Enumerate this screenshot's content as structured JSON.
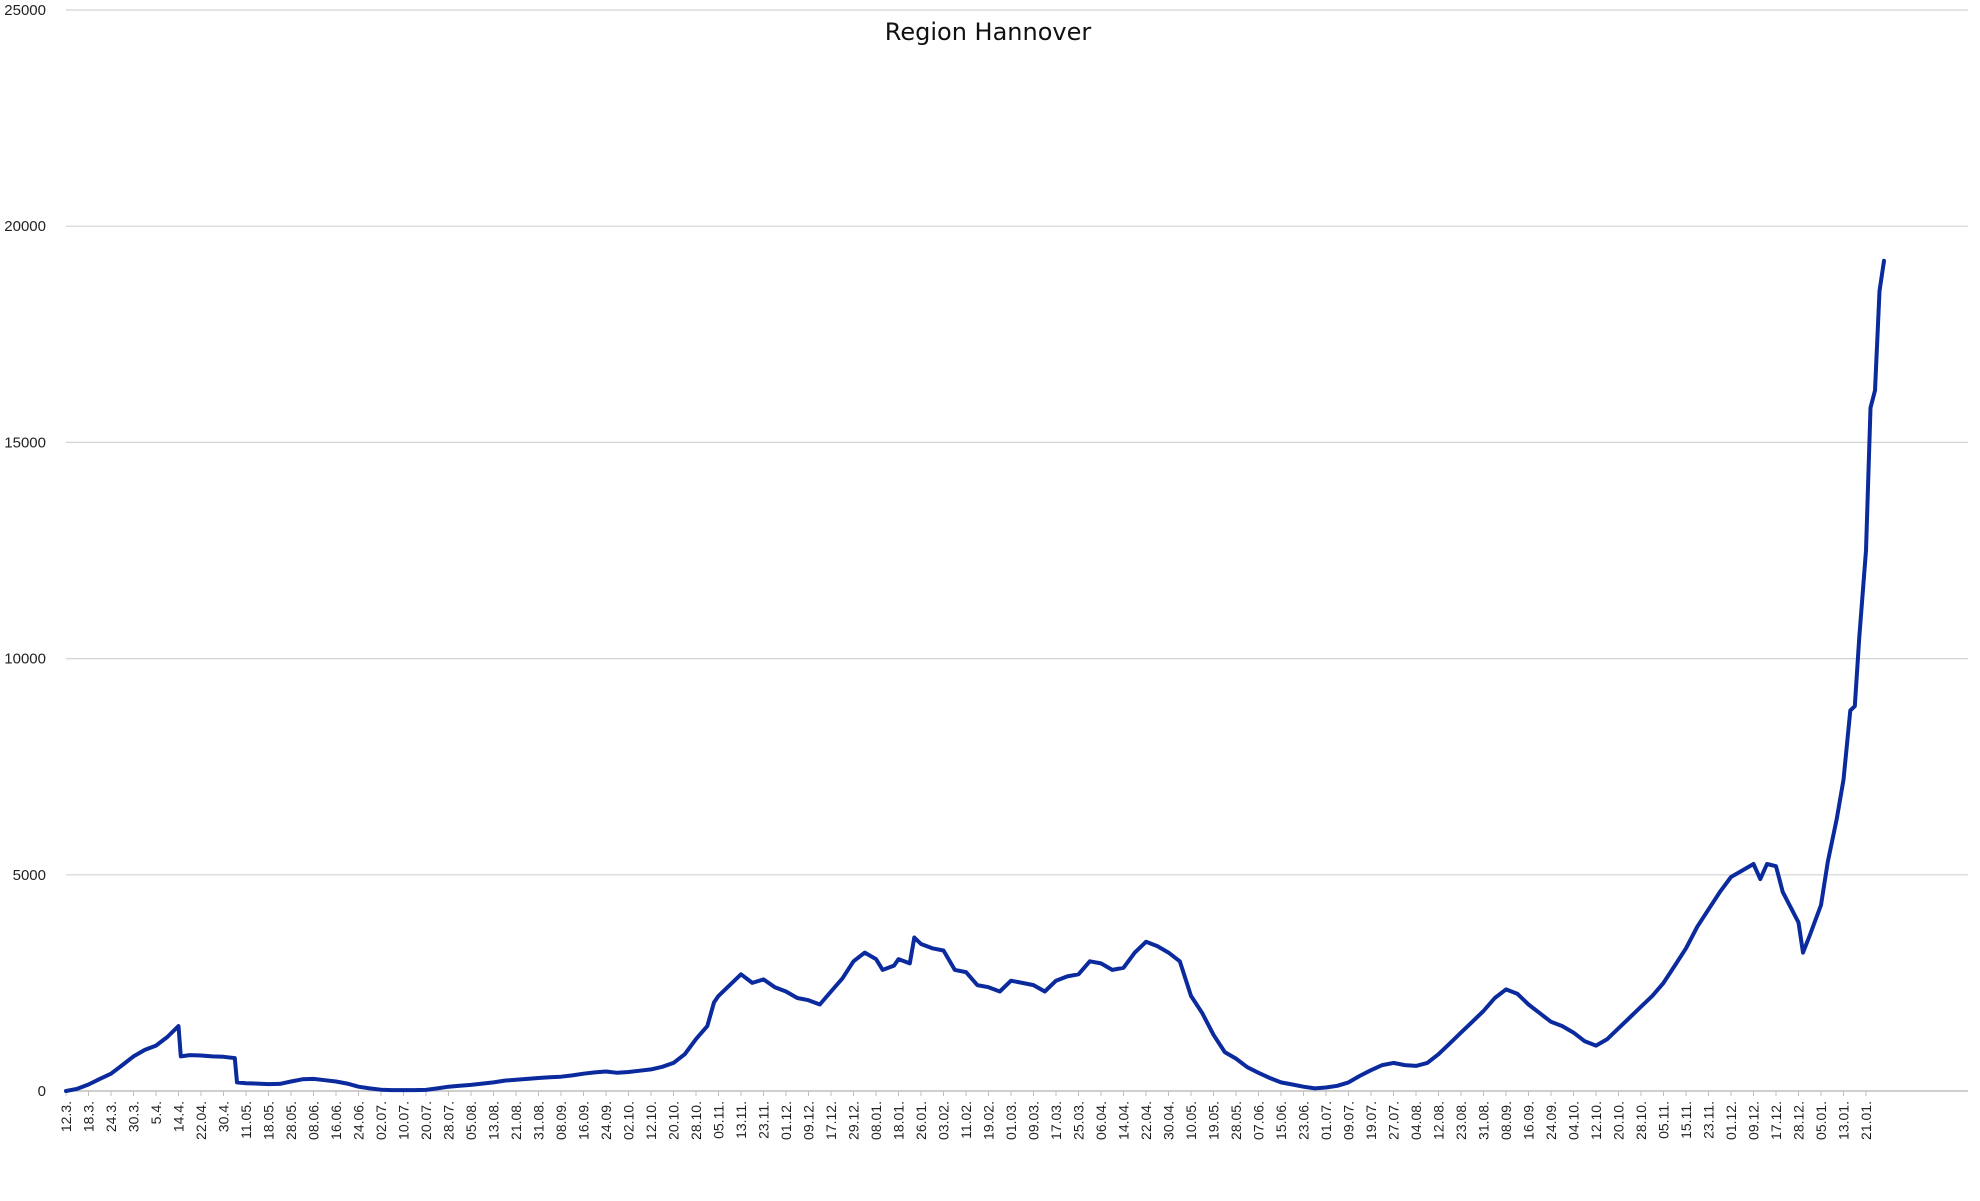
{
  "chart_data": {
    "type": "line",
    "title": "Region Hannover",
    "xlabel": "",
    "ylabel": "",
    "ylim": [
      0,
      25000
    ],
    "yticks": [
      0,
      5000,
      10000,
      15000,
      20000,
      25000
    ],
    "grid": true,
    "legend": "none",
    "line_color": "#0a2a9e",
    "categories": [
      "12.3.",
      "18.3.",
      "24.3.",
      "30.3.",
      "5.4.",
      "14.4.",
      "22.04.",
      "30.4.",
      "11.05.",
      "18.05.",
      "28.05.",
      "08.06.",
      "16.06.",
      "24.06.",
      "02.07.",
      "10.07.",
      "20.07.",
      "28.07.",
      "05.08.",
      "13.08.",
      "21.08.",
      "31.08.",
      "08.09.",
      "16.09.",
      "24.09.",
      "02.10.",
      "12.10.",
      "20.10.",
      "28.10.",
      "05.11.",
      "13.11.",
      "23.11.",
      "01.12.",
      "09.12.",
      "17.12.",
      "29.12.",
      "08.01.",
      "18.01.",
      "26.01.",
      "03.02.",
      "11.02.",
      "19.02.",
      "01.03.",
      "09.03.",
      "17.03.",
      "25.03.",
      "06.04.",
      "14.04.",
      "22.04.",
      "30.04.",
      "10.05.",
      "19.05.",
      "28.05.",
      "07.06.",
      "15.06.",
      "23.06.",
      "01.07.",
      "09.07.",
      "19.07.",
      "27.07.",
      "04.08.",
      "12.08.",
      "23.08.",
      "31.08.",
      "08.09.",
      "16.09.",
      "24.09.",
      "04.10.",
      "12.10.",
      "20.10.",
      "28.10.",
      "05.11.",
      "15.11.",
      "23.11.",
      "01.12.",
      "09.12.",
      "17.12.",
      "28.12.",
      "05.01.",
      "13.01.",
      "21.01."
    ],
    "series": [
      {
        "values": [
          [
            0,
            0
          ],
          [
            0.5,
            50
          ],
          [
            1,
            150
          ],
          [
            1.5,
            280
          ],
          [
            2,
            400
          ],
          [
            2.5,
            600
          ],
          [
            3,
            800
          ],
          [
            3.5,
            950
          ],
          [
            4,
            1050
          ],
          [
            4.5,
            1250
          ],
          [
            5,
            1500
          ],
          [
            5.1,
            800
          ],
          [
            5.5,
            830
          ],
          [
            6,
            820
          ],
          [
            6.5,
            800
          ],
          [
            7,
            790
          ],
          [
            7.5,
            760
          ],
          [
            7.6,
            200
          ],
          [
            8,
            180
          ],
          [
            8.5,
            170
          ],
          [
            9,
            160
          ],
          [
            9.5,
            165
          ],
          [
            10,
            220
          ],
          [
            10.5,
            270
          ],
          [
            11,
            280
          ],
          [
            11.5,
            250
          ],
          [
            12,
            220
          ],
          [
            12.5,
            170
          ],
          [
            13,
            100
          ],
          [
            13.5,
            60
          ],
          [
            14,
            30
          ],
          [
            14.5,
            20
          ],
          [
            15,
            20
          ],
          [
            15.5,
            20
          ],
          [
            16,
            25
          ],
          [
            16.5,
            60
          ],
          [
            17,
            100
          ],
          [
            17.5,
            120
          ],
          [
            18,
            140
          ],
          [
            18.5,
            170
          ],
          [
            19,
            200
          ],
          [
            19.5,
            240
          ],
          [
            20,
            260
          ],
          [
            20.5,
            280
          ],
          [
            21,
            300
          ],
          [
            21.5,
            320
          ],
          [
            22,
            330
          ],
          [
            22.5,
            360
          ],
          [
            23,
            400
          ],
          [
            23.5,
            430
          ],
          [
            24,
            450
          ],
          [
            24.5,
            420
          ],
          [
            25,
            440
          ],
          [
            25.5,
            470
          ],
          [
            26,
            500
          ],
          [
            26.5,
            560
          ],
          [
            27,
            650
          ],
          [
            27.5,
            850
          ],
          [
            28,
            1200
          ],
          [
            28.5,
            1500
          ],
          [
            28.8,
            2050
          ],
          [
            29,
            2200
          ],
          [
            29.5,
            2450
          ],
          [
            30,
            2700
          ],
          [
            30.5,
            2500
          ],
          [
            31,
            2580
          ],
          [
            31.5,
            2400
          ],
          [
            32,
            2300
          ],
          [
            32.5,
            2150
          ],
          [
            33,
            2100
          ],
          [
            33.5,
            2000
          ],
          [
            34,
            2300
          ],
          [
            34.5,
            2600
          ],
          [
            35,
            3000
          ],
          [
            35.5,
            3200
          ],
          [
            36,
            3050
          ],
          [
            36.3,
            2800
          ],
          [
            36.8,
            2900
          ],
          [
            37,
            3050
          ],
          [
            37.5,
            2950
          ],
          [
            37.7,
            3550
          ],
          [
            38,
            3400
          ],
          [
            38.5,
            3300
          ],
          [
            39,
            3250
          ],
          [
            39.5,
            2800
          ],
          [
            40,
            2750
          ],
          [
            40.5,
            2450
          ],
          [
            41,
            2400
          ],
          [
            41.5,
            2300
          ],
          [
            42,
            2550
          ],
          [
            42.5,
            2500
          ],
          [
            43,
            2450
          ],
          [
            43.5,
            2300
          ],
          [
            44,
            2550
          ],
          [
            44.5,
            2650
          ],
          [
            45,
            2700
          ],
          [
            45.5,
            3000
          ],
          [
            46,
            2950
          ],
          [
            46.5,
            2800
          ],
          [
            47,
            2850
          ],
          [
            47.5,
            3200
          ],
          [
            48,
            3450
          ],
          [
            48.5,
            3350
          ],
          [
            49,
            3200
          ],
          [
            49.5,
            3000
          ],
          [
            50,
            2200
          ],
          [
            50.5,
            1800
          ],
          [
            51,
            1300
          ],
          [
            51.5,
            900
          ],
          [
            52,
            750
          ],
          [
            52.5,
            550
          ],
          [
            53,
            420
          ],
          [
            53.5,
            300
          ],
          [
            54,
            200
          ],
          [
            54.5,
            150
          ],
          [
            55,
            100
          ],
          [
            55.5,
            60
          ],
          [
            56,
            80
          ],
          [
            56.5,
            120
          ],
          [
            57,
            200
          ],
          [
            57.5,
            350
          ],
          [
            58,
            480
          ],
          [
            58.5,
            600
          ],
          [
            59,
            650
          ],
          [
            59.5,
            600
          ],
          [
            60,
            580
          ],
          [
            60.5,
            650
          ],
          [
            61,
            850
          ],
          [
            61.5,
            1100
          ],
          [
            62,
            1350
          ],
          [
            62.5,
            1600
          ],
          [
            63,
            1850
          ],
          [
            63.5,
            2150
          ],
          [
            64,
            2350
          ],
          [
            64.5,
            2250
          ],
          [
            65,
            2000
          ],
          [
            65.5,
            1800
          ],
          [
            66,
            1600
          ],
          [
            66.5,
            1500
          ],
          [
            67,
            1350
          ],
          [
            67.5,
            1150
          ],
          [
            68,
            1050
          ],
          [
            68.5,
            1200
          ],
          [
            69,
            1450
          ],
          [
            69.5,
            1700
          ],
          [
            70,
            1950
          ],
          [
            70.5,
            2200
          ],
          [
            71,
            2500
          ],
          [
            71.5,
            2900
          ],
          [
            72,
            3300
          ],
          [
            72.5,
            3800
          ],
          [
            73,
            4200
          ],
          [
            73.5,
            4600
          ],
          [
            74,
            4950
          ],
          [
            74.5,
            5100
          ],
          [
            75,
            5250
          ],
          [
            75.3,
            4900
          ],
          [
            75.6,
            5250
          ],
          [
            76,
            5200
          ],
          [
            76.3,
            4600
          ],
          [
            76.6,
            4300
          ],
          [
            77,
            3900
          ],
          [
            77.2,
            3200
          ],
          [
            77.5,
            3600
          ],
          [
            78,
            4300
          ],
          [
            78.3,
            5300
          ],
          [
            78.7,
            6300
          ],
          [
            79,
            7200
          ],
          [
            79.3,
            8800
          ],
          [
            79.5,
            8900
          ],
          [
            79.7,
            10500
          ],
          [
            80,
            12500
          ],
          [
            80.2,
            15800
          ],
          [
            80.4,
            16200
          ],
          [
            80.6,
            18500
          ],
          [
            80.8,
            19200
          ]
        ]
      }
    ]
  }
}
